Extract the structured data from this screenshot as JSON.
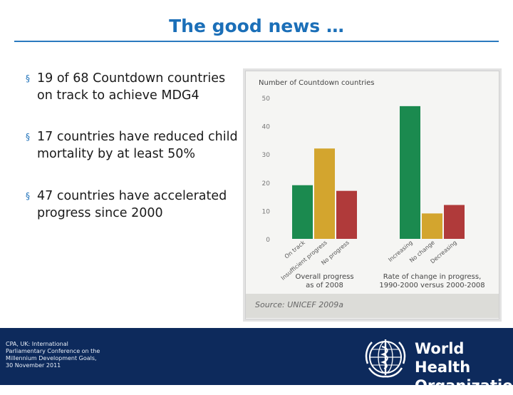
{
  "slide": {
    "title": "The good news …",
    "bullets": [
      "19 of 68 Countdown countries on track to achieve MDG4",
      "17 countries have reduced child mortality by at least 50%",
      "47 countries have accelerated progress since 2000"
    ],
    "bullet_marker": "§"
  },
  "chart_data": {
    "type": "bar",
    "title": "Number of Countdown countries",
    "ylim": [
      0,
      50
    ],
    "yticks": [
      "0",
      "10",
      "20",
      "30",
      "40",
      "50"
    ],
    "groups": [
      {
        "label_line1": "Overall progress",
        "label_line2": "as of 2008",
        "categories": [
          "On track",
          "Insufficient progress",
          "No progress"
        ],
        "values": [
          19,
          32,
          17
        ],
        "colors": [
          "#1b8a4f",
          "#d3a52e",
          "#b03a3a"
        ]
      },
      {
        "label_line1": "Rate of change in progress,",
        "label_line2": "1990-2000 versus 2000-2008",
        "categories": [
          "Increasing",
          "No change",
          "Decreasing"
        ],
        "values": [
          47,
          9,
          12
        ],
        "colors": [
          "#1b8a4f",
          "#d3a52e",
          "#b03a3a"
        ]
      }
    ],
    "source": "Source: UNICEF 2009a"
  },
  "footer": {
    "line1": "CPA, UK: International",
    "line2": "Parliamentary Conference on the",
    "line3": "Millennium Development Goals,",
    "line4": "30 November 2011",
    "org_line1": "World Health",
    "org_line2": "Organization"
  }
}
